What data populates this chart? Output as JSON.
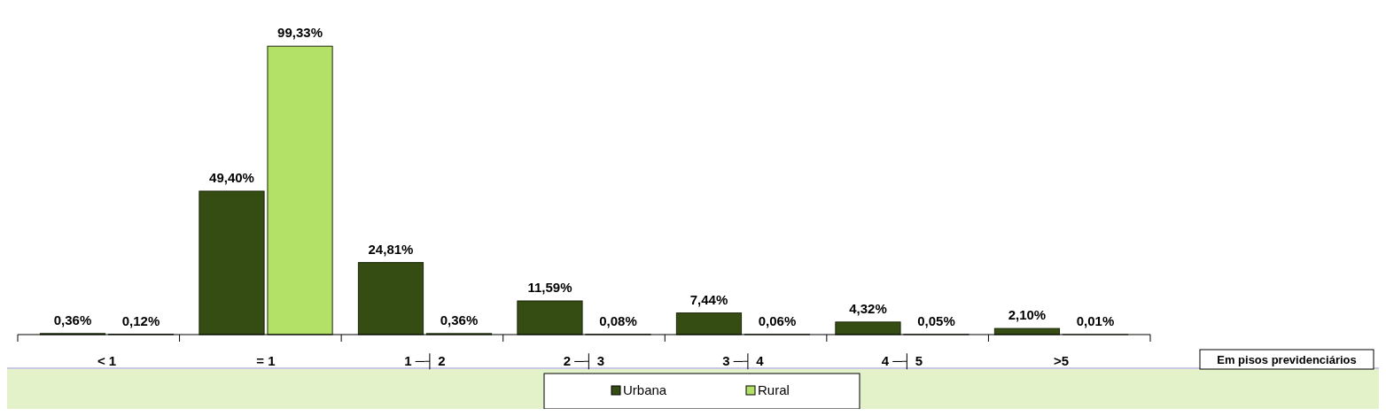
{
  "chart_data": {
    "type": "bar",
    "annotations": [
      "Em pisos previdenciários"
    ],
    "categories": [
      "< 1",
      "= 1",
      "1 ─┤ 2",
      "2 ─┤ 3",
      "3 ─┤ 4",
      "4 ─┤ 5",
      ">5"
    ],
    "series": [
      {
        "name": "Urbana",
        "color": "#354d12",
        "values": [
          0.36,
          49.4,
          24.81,
          11.59,
          7.44,
          4.32,
          2.1
        ],
        "value_labels": [
          "0,36%",
          "49,40%",
          "24,81%",
          "11,59%",
          "7,44%",
          "4,32%",
          "2,10%"
        ]
      },
      {
        "name": "Rural",
        "color": "#b3e066",
        "values": [
          0.12,
          99.33,
          0.36,
          0.08,
          0.06,
          0.05,
          0.01
        ],
        "value_labels": [
          "0,12%",
          "99,33%",
          "0,36%",
          "0,08%",
          "0,06%",
          "0,05%",
          "0,01%"
        ]
      }
    ],
    "ylim": [
      0,
      100
    ],
    "tick_labels": "x",
    "legend": "bottom"
  }
}
